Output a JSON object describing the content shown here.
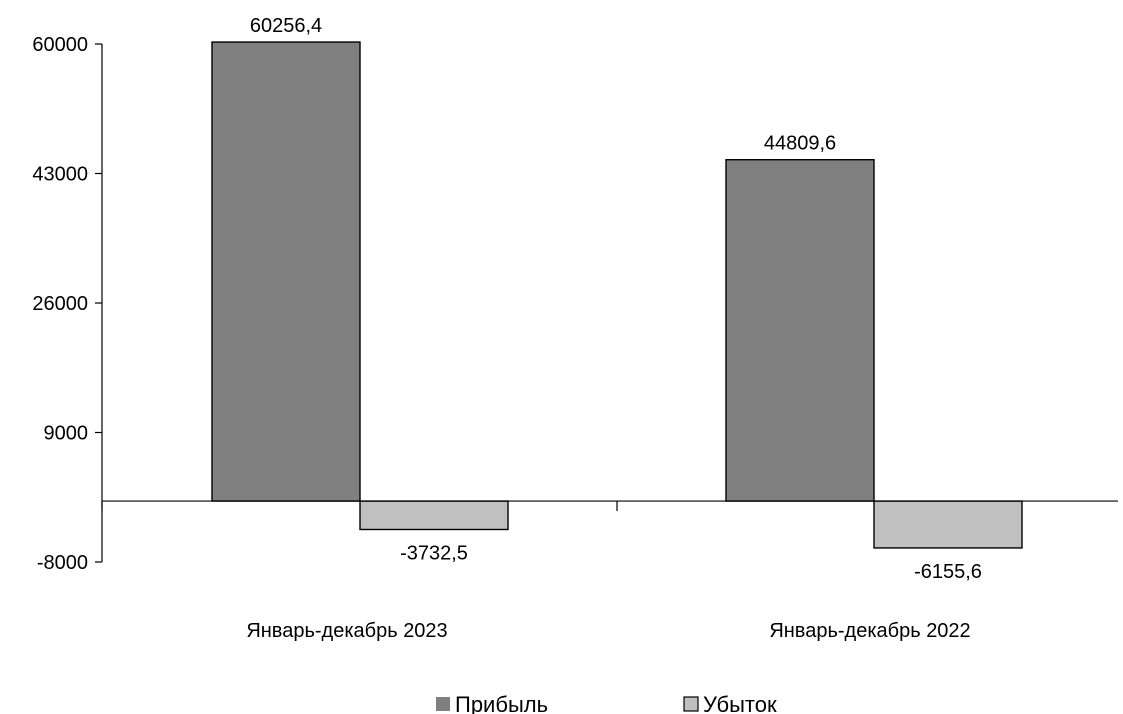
{
  "chart_data": {
    "type": "bar",
    "categories": [
      "Январь-декабрь 2023",
      "Январь-декабрь 2022"
    ],
    "series": [
      {
        "name": "Прибыль",
        "values": [
          60256.4,
          44809.6
        ],
        "labels": [
          "60256,4",
          "44809,6"
        ],
        "color": "#808080"
      },
      {
        "name": "Убыток",
        "values": [
          -3732.5,
          -6155.6
        ],
        "labels": [
          "-3732,5",
          "-6155,6"
        ],
        "color": "#c0c0c0"
      }
    ],
    "yticks": [
      60000,
      43000,
      26000,
      9000,
      -8000
    ],
    "ylim": [
      -8000,
      60000
    ],
    "grid": false,
    "legend": "bottom",
    "title": "",
    "xlabel": "",
    "ylabel": ""
  }
}
